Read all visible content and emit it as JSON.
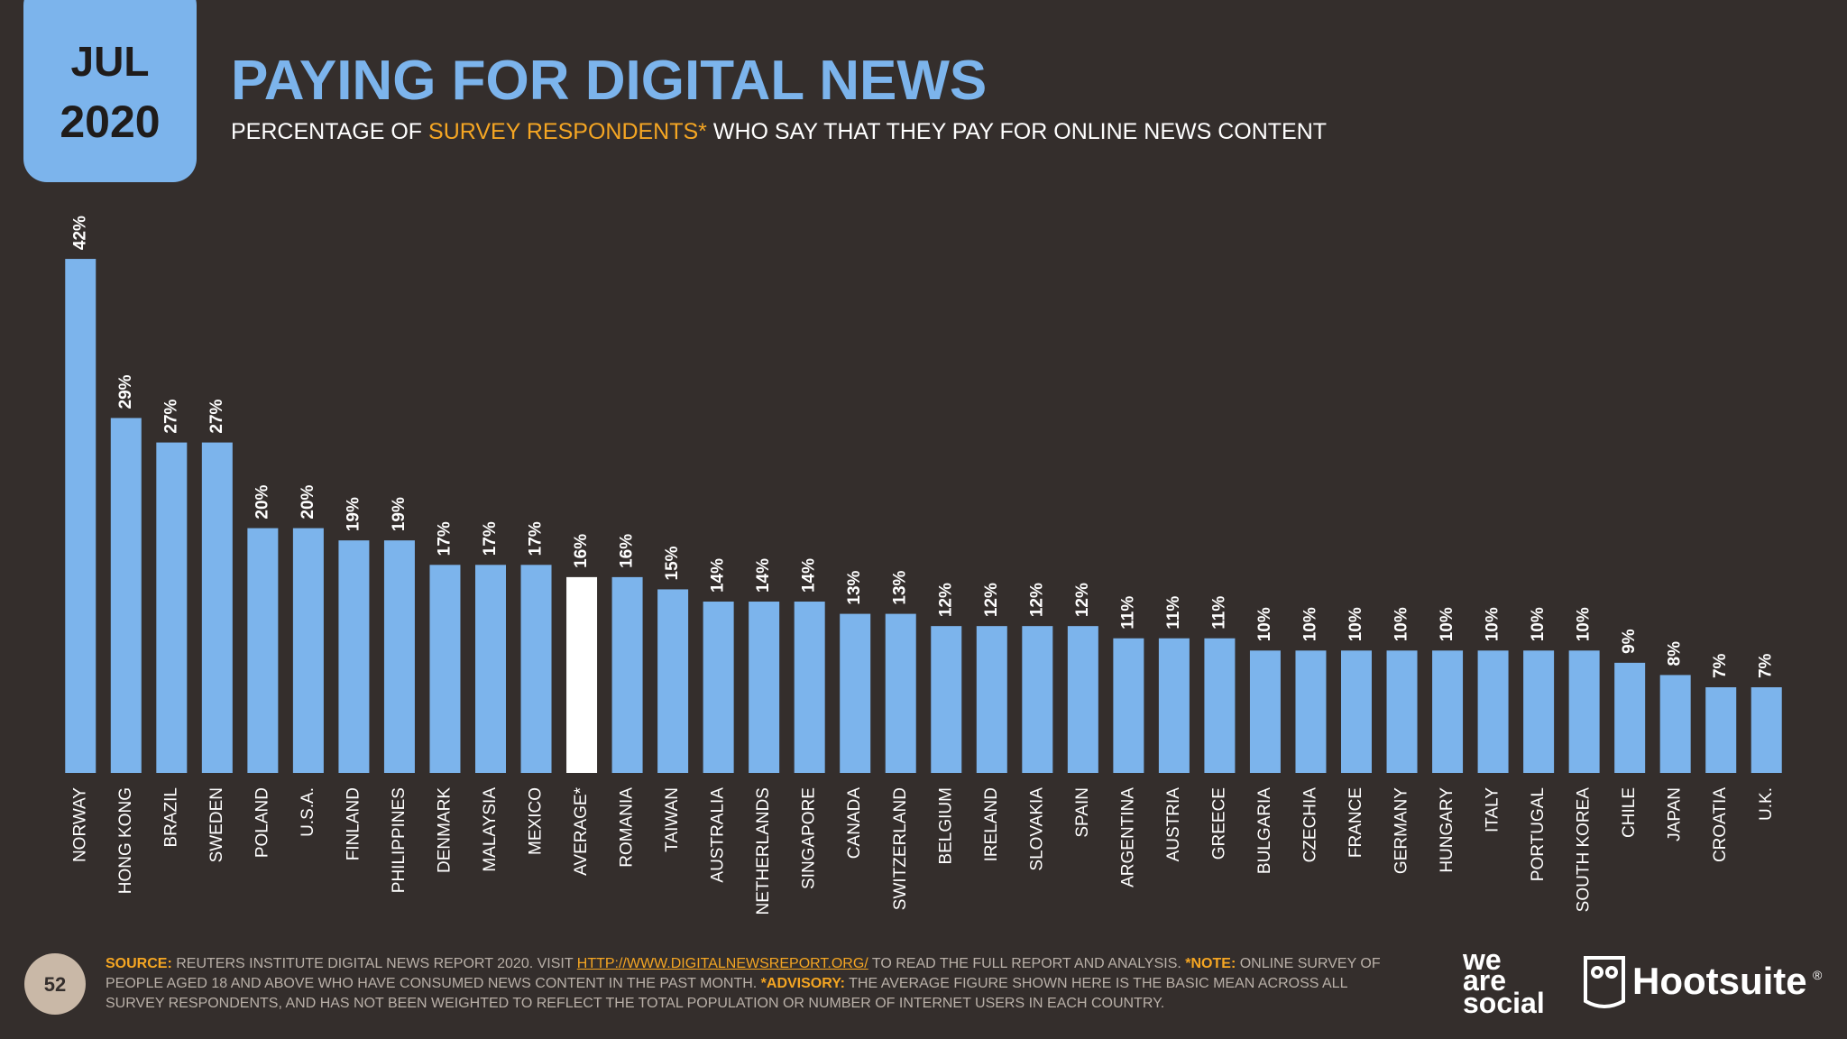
{
  "badge": {
    "month": "JUL",
    "year": "2020"
  },
  "chart_data": {
    "type": "bar",
    "title": "PAYING FOR DIGITAL NEWS",
    "subtitle": [
      {
        "text": "PERCENTAGE OF "
      },
      {
        "text": "SURVEY RESPONDENTS*",
        "emphasis": true
      },
      {
        "text": " WHO SAY THAT THEY PAY FOR ONLINE NEWS CONTENT"
      }
    ],
    "categories": [
      "NORWAY",
      "HONG KONG",
      "BRAZIL",
      "SWEDEN",
      "POLAND",
      "U.S.A.",
      "FINLAND",
      "PHILIPPINES",
      "DENMARK",
      "MALAYSIA",
      "MEXICO",
      "AVERAGE*",
      "ROMANIA",
      "TAIWAN",
      "AUSTRALIA",
      "NETHERLANDS",
      "SINGAPORE",
      "CANADA",
      "SWITZERLAND",
      "BELGIUM",
      "IRELAND",
      "SLOVAKIA",
      "SPAIN",
      "ARGENTINA",
      "AUSTRIA",
      "GREECE",
      "BULGARIA",
      "CZECHIA",
      "FRANCE",
      "GERMANY",
      "HUNGARY",
      "ITALY",
      "PORTUGAL",
      "SOUTH KOREA",
      "CHILE",
      "JAPAN",
      "CROATIA",
      "U.K."
    ],
    "values": [
      42,
      29,
      27,
      27,
      20,
      20,
      19,
      19,
      17,
      17,
      17,
      16,
      16,
      15,
      14,
      14,
      14,
      13,
      13,
      12,
      12,
      12,
      12,
      11,
      11,
      11,
      10,
      10,
      10,
      10,
      10,
      10,
      10,
      10,
      9,
      8,
      7,
      7
    ],
    "value_labels": [
      "42%",
      "29%",
      "27%",
      "27%",
      "20%",
      "20%",
      "19%",
      "19%",
      "17%",
      "17%",
      "17%",
      "16%",
      "16%",
      "15%",
      "14%",
      "14%",
      "14%",
      "13%",
      "13%",
      "12%",
      "12%",
      "12%",
      "12%",
      "11%",
      "11%",
      "11%",
      "10%",
      "10%",
      "10%",
      "10%",
      "10%",
      "10%",
      "10%",
      "10%",
      "9%",
      "8%",
      "7%",
      "7%"
    ],
    "color": "#7cb4ec",
    "highlight_category": "AVERAGE*",
    "highlight_color": "#ffffff"
  },
  "footnote": [
    {
      "text": "SOURCE:",
      "emphasis": true
    },
    {
      "text": " REUTERS INSTITUTE DIGITAL NEWS REPORT 2020. VISIT "
    },
    {
      "text": "HTTP://WWW.DIGITALNEWSREPORT.ORG/",
      "emphasis": true,
      "link": true
    },
    {
      "text": " TO READ THE FULL REPORT AND ANALYSIS. "
    },
    {
      "text": "*NOTE:",
      "emphasis": true
    },
    {
      "text": " ONLINE SURVEY OF PEOPLE AGED 18 AND ABOVE WHO HAVE CONSUMED NEWS CONTENT IN THE PAST MONTH. "
    },
    {
      "text": "*ADVISORY:",
      "emphasis": true
    },
    {
      "text": " THE AVERAGE FIGURE SHOWN HERE IS THE BASIC MEAN ACROSS ALL SURVEY RESPONDENTS, AND HAS NOT BEEN WEIGHTED TO REFLECT THE TOTAL POPULATION OR NUMBER OF INTERNET USERS IN EACH COUNTRY."
    }
  ],
  "page_number": "52",
  "logos": {
    "we_are_social": [
      "we",
      "are",
      "social"
    ],
    "hootsuite": "Hootsuite",
    "registered": "®"
  }
}
